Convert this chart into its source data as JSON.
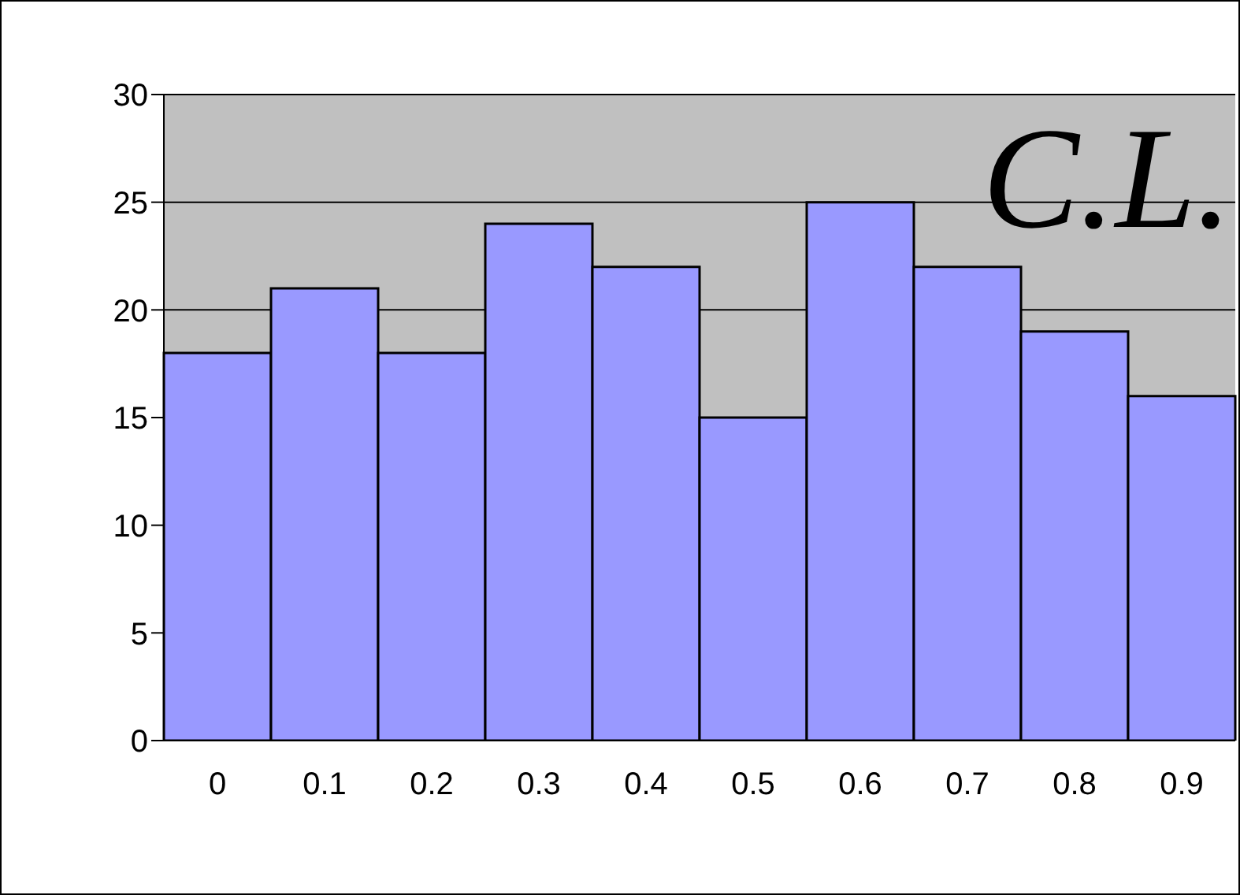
{
  "chart_data": {
    "type": "bar",
    "categories": [
      "0",
      "0.1",
      "0.2",
      "0.3",
      "0.4",
      "0.5",
      "0.6",
      "0.7",
      "0.8",
      "0.9"
    ],
    "values": [
      18,
      21,
      18,
      24,
      22,
      15,
      25,
      22,
      19,
      16
    ],
    "color": "#9999ff",
    "ylim": [
      0,
      30
    ],
    "yticks": [
      0,
      5,
      10,
      15,
      20,
      25,
      30
    ],
    "grid": "y",
    "annotations": [
      "C.L."
    ]
  }
}
